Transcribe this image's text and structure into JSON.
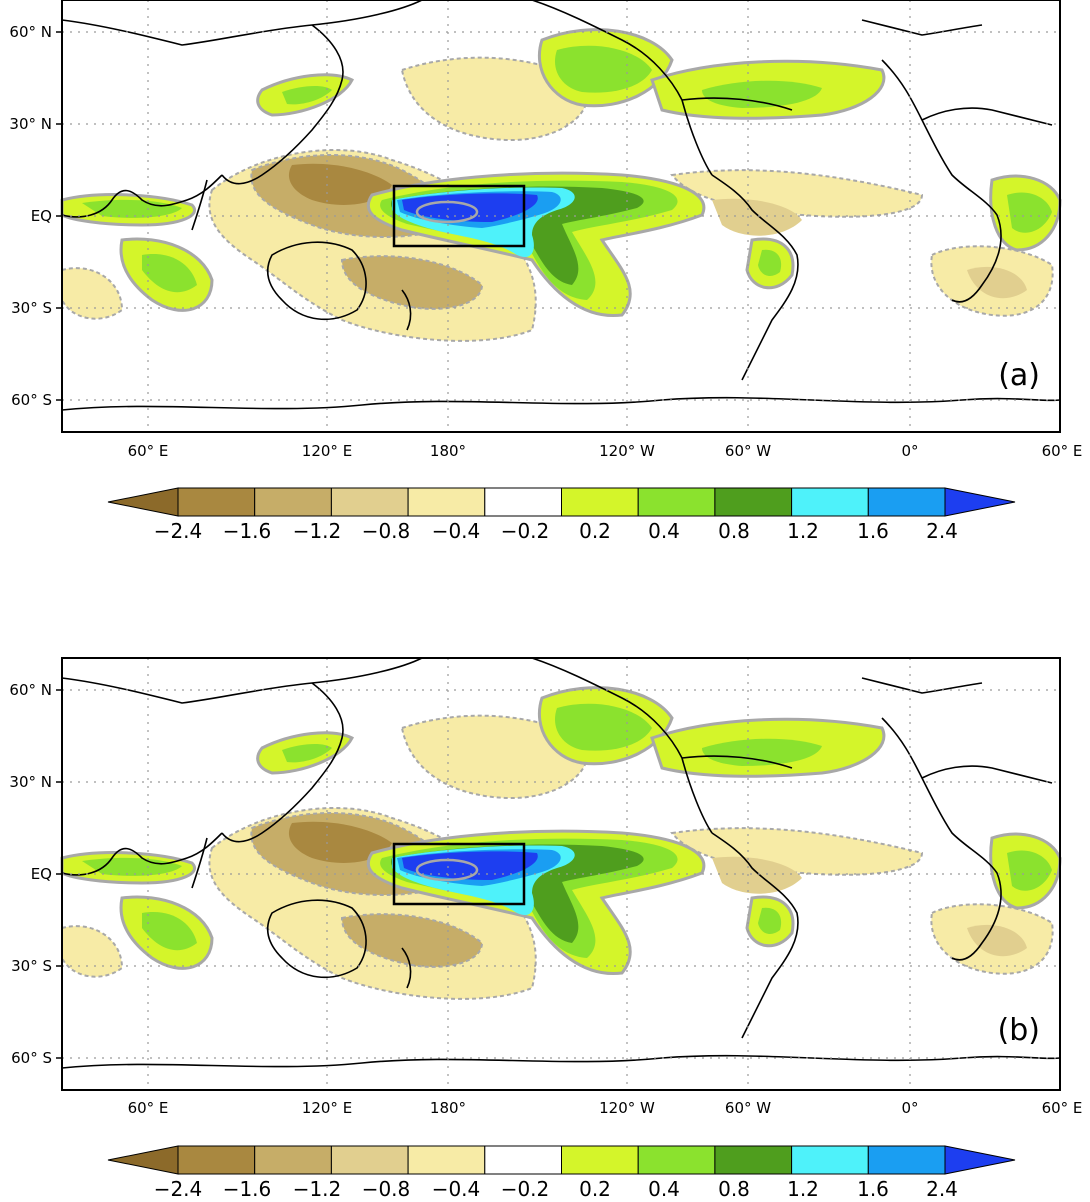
{
  "panels": [
    {
      "id": "a",
      "label": "(a)"
    },
    {
      "id": "b",
      "label": "(b)"
    }
  ],
  "axes": {
    "lat_labels": [
      "60° N",
      "30° N",
      "EQ",
      "30° S",
      "60° S"
    ],
    "lon_labels": [
      "60° E",
      "120° E",
      "180°",
      "120° W",
      "60° W",
      "0°",
      "60° E"
    ]
  },
  "colorbar": {
    "tick_labels": [
      "−2.4",
      "−1.6",
      "−1.2",
      "−0.8",
      "−0.4",
      "−0.2",
      "0.2",
      "0.4",
      "0.8",
      "1.2",
      "1.6",
      "2.4"
    ],
    "colors": [
      "#8c6a2a",
      "#a98840",
      "#c6ad68",
      "#e1cf8f",
      "#f7eba6",
      "#ffffff",
      "#d4f52a",
      "#8be22e",
      "#4f9e1e",
      "#4ef2fa",
      "#1a9ef2",
      "#1d3ef0"
    ]
  },
  "colors": {
    "neg_fill_light": "#f7eba6",
    "neg_fill_mid": "#e1cf8f",
    "neg_fill_dark": "#c6ad68",
    "neg_fill_deep": "#a98840",
    "pos_fill_light": "#d4f52a",
    "pos_fill_mid": "#8be22e",
    "pos_fill_dark": "#4f9e1e",
    "pos_cyan": "#4ef2fa",
    "pos_blue": "#1a9ef2",
    "pos_deep_blue": "#1d3ef0",
    "contour_gray": "#a8a8a8",
    "coast": "#000000"
  }
}
